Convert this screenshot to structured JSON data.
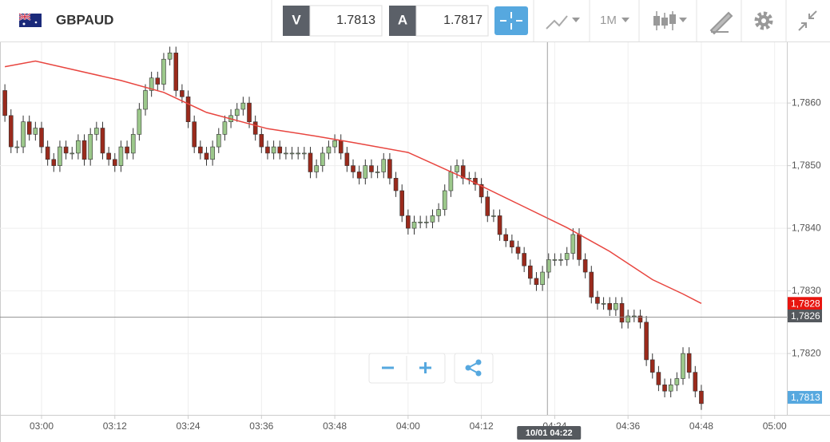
{
  "toolbar": {
    "symbol": "GBPAUD",
    "bid_label": "V",
    "bid": "1.7813",
    "ask_label": "A",
    "ask": "1.7817",
    "timeframe": "1M"
  },
  "chart_data": {
    "type": "candlestick",
    "x": [
      174,
      175,
      176,
      177,
      178,
      179,
      180,
      181,
      182,
      183,
      184,
      185,
      186,
      187,
      188,
      189,
      190,
      191,
      192,
      193,
      194,
      195,
      196,
      197,
      198,
      199,
      200,
      201,
      202,
      203,
      204,
      205,
      206,
      207,
      208,
      209,
      210,
      211,
      212,
      213,
      214,
      215,
      216,
      217,
      218,
      219,
      220,
      221,
      222,
      223,
      224,
      225,
      226,
      227,
      228,
      229,
      230,
      231,
      232,
      233,
      234,
      235,
      236,
      237,
      238,
      239,
      240,
      241,
      242,
      243,
      244,
      245,
      246,
      247,
      248,
      249,
      250,
      251,
      252,
      253,
      254,
      255,
      256,
      257,
      258,
      259,
      260,
      261,
      262,
      263,
      264,
      265,
      266,
      267,
      268,
      269,
      270,
      271,
      272,
      273,
      274,
      275,
      276,
      277,
      278,
      279,
      280,
      281,
      282,
      283,
      284,
      285,
      286,
      287,
      288
    ],
    "open": [
      1.7862,
      1.7858,
      1.7853,
      1.7853,
      1.7857,
      1.7855,
      1.7856,
      1.7853,
      1.7851,
      1.785,
      1.7853,
      1.7852,
      1.7852,
      1.7854,
      1.7851,
      1.7855,
      1.7856,
      1.7852,
      1.7851,
      1.785,
      1.7853,
      1.7852,
      1.7855,
      1.7859,
      1.7862,
      1.7864,
      1.7863,
      1.7867,
      1.7868,
      1.7862,
      1.7861,
      1.7857,
      1.7853,
      1.7852,
      1.7851,
      1.7853,
      1.7855,
      1.7857,
      1.7858,
      1.7859,
      1.786,
      1.7857,
      1.7855,
      1.7853,
      1.7852,
      1.7853,
      1.7852,
      1.7852,
      1.7852,
      1.7852,
      1.7852,
      1.7849,
      1.785,
      1.7852,
      1.7853,
      1.7854,
      1.7852,
      1.785,
      1.7849,
      1.7848,
      1.785,
      1.7849,
      1.7849,
      1.7851,
      1.7848,
      1.7846,
      1.7842,
      1.784,
      1.7841,
      1.7841,
      1.7841,
      1.7842,
      1.7843,
      1.7846,
      1.7849,
      1.785,
      1.7848,
      1.7848,
      1.7847,
      1.7845,
      1.7842,
      1.7842,
      1.7839,
      1.7838,
      1.7837,
      1.7836,
      1.7834,
      1.7832,
      1.7831,
      1.7833,
      1.7835,
      1.7835,
      1.7835,
      1.7836,
      1.7839,
      1.7835,
      1.7833,
      1.7829,
      1.7828,
      1.7828,
      1.7827,
      1.7828,
      1.7825,
      1.7826,
      1.7826,
      1.7825,
      1.7819,
      1.7817,
      1.7815,
      1.7814,
      1.7815,
      1.7816,
      1.782,
      1.7817,
      1.7814
    ],
    "high": [
      1.7863,
      1.7859,
      1.7854,
      1.7858,
      1.7858,
      1.7857,
      1.7857,
      1.7854,
      1.7852,
      1.7854,
      1.7854,
      1.7853,
      1.7855,
      1.7855,
      1.7856,
      1.7857,
      1.7857,
      1.7853,
      1.7852,
      1.7854,
      1.7854,
      1.7856,
      1.786,
      1.7863,
      1.7865,
      1.7865,
      1.7868,
      1.7869,
      1.7869,
      1.7863,
      1.7862,
      1.7858,
      1.7854,
      1.7853,
      1.7854,
      1.7856,
      1.7858,
      1.7859,
      1.786,
      1.7861,
      1.7861,
      1.7858,
      1.7856,
      1.7854,
      1.7854,
      1.7854,
      1.7853,
      1.7853,
      1.7853,
      1.7853,
      1.7853,
      1.7851,
      1.7853,
      1.7854,
      1.7855,
      1.7855,
      1.7853,
      1.7851,
      1.785,
      1.7851,
      1.7851,
      1.785,
      1.7852,
      1.7852,
      1.7849,
      1.7847,
      1.7843,
      1.7842,
      1.7842,
      1.7842,
      1.7843,
      1.7844,
      1.7847,
      1.785,
      1.7851,
      1.7851,
      1.7849,
      1.7849,
      1.7848,
      1.7846,
      1.7843,
      1.7843,
      1.784,
      1.7839,
      1.7838,
      1.7837,
      1.7835,
      1.7833,
      1.7834,
      1.7836,
      1.7836,
      1.7836,
      1.7837,
      1.784,
      1.784,
      1.7836,
      1.7834,
      1.783,
      1.7829,
      1.7829,
      1.7829,
      1.7829,
      1.7827,
      1.7827,
      1.7827,
      1.7826,
      1.782,
      1.7818,
      1.7816,
      1.7816,
      1.7817,
      1.7821,
      1.7821,
      1.7818,
      1.7815
    ],
    "low": [
      1.7857,
      1.7852,
      1.7852,
      1.7852,
      1.7854,
      1.7854,
      1.7852,
      1.785,
      1.7849,
      1.7849,
      1.7851,
      1.7851,
      1.7851,
      1.785,
      1.785,
      1.7854,
      1.7851,
      1.785,
      1.7849,
      1.7849,
      1.7851,
      1.7851,
      1.7854,
      1.7858,
      1.7861,
      1.7862,
      1.7862,
      1.7866,
      1.7861,
      1.786,
      1.7856,
      1.7852,
      1.7851,
      1.785,
      1.785,
      1.7852,
      1.7854,
      1.7856,
      1.7857,
      1.7858,
      1.7856,
      1.7854,
      1.7852,
      1.7851,
      1.7851,
      1.7851,
      1.7851,
      1.7851,
      1.7851,
      1.7851,
      1.7848,
      1.7848,
      1.7849,
      1.7851,
      1.7852,
      1.7851,
      1.7849,
      1.7848,
      1.7847,
      1.7847,
      1.7848,
      1.7848,
      1.7848,
      1.7847,
      1.7845,
      1.7841,
      1.7839,
      1.7839,
      1.784,
      1.784,
      1.784,
      1.7841,
      1.7842,
      1.7845,
      1.7848,
      1.7847,
      1.7847,
      1.7846,
      1.7844,
      1.7841,
      1.7841,
      1.7838,
      1.7837,
      1.7836,
      1.7835,
      1.7833,
      1.7831,
      1.783,
      1.783,
      1.7832,
      1.7834,
      1.7834,
      1.7834,
      1.7835,
      1.7834,
      1.7832,
      1.7828,
      1.7827,
      1.7827,
      1.7826,
      1.7826,
      1.7824,
      1.7824,
      1.7825,
      1.7824,
      1.7818,
      1.7816,
      1.7814,
      1.7813,
      1.7813,
      1.7814,
      1.7815,
      1.7816,
      1.7813,
      1.7811
    ],
    "close": [
      1.7858,
      1.7853,
      1.7853,
      1.7857,
      1.7855,
      1.7856,
      1.7853,
      1.7851,
      1.785,
      1.7853,
      1.7852,
      1.7852,
      1.7854,
      1.7851,
      1.7855,
      1.7856,
      1.7852,
      1.7851,
      1.785,
      1.7853,
      1.7852,
      1.7855,
      1.7859,
      1.7862,
      1.7864,
      1.7863,
      1.7867,
      1.7868,
      1.7862,
      1.7861,
      1.7857,
      1.7853,
      1.7852,
      1.7851,
      1.7853,
      1.7855,
      1.7857,
      1.7858,
      1.7859,
      1.786,
      1.7857,
      1.7855,
      1.7853,
      1.7852,
      1.7853,
      1.7852,
      1.7852,
      1.7852,
      1.7852,
      1.7852,
      1.7849,
      1.785,
      1.7852,
      1.7853,
      1.7854,
      1.7852,
      1.785,
      1.7849,
      1.7848,
      1.785,
      1.7849,
      1.7849,
      1.7851,
      1.7848,
      1.7846,
      1.7842,
      1.784,
      1.7841,
      1.7841,
      1.7841,
      1.7842,
      1.7843,
      1.7846,
      1.7849,
      1.785,
      1.7848,
      1.7848,
      1.7847,
      1.7845,
      1.7842,
      1.7842,
      1.7839,
      1.7838,
      1.7837,
      1.7836,
      1.7834,
      1.7832,
      1.7831,
      1.7833,
      1.7835,
      1.7835,
      1.7835,
      1.7836,
      1.7839,
      1.7835,
      1.7833,
      1.7829,
      1.7828,
      1.7828,
      1.7827,
      1.7828,
      1.7825,
      1.7826,
      1.7826,
      1.7825,
      1.7819,
      1.7817,
      1.7815,
      1.7814,
      1.7815,
      1.7816,
      1.782,
      1.7817,
      1.7814,
      1.7812
    ],
    "up_color": "#9cc88b",
    "down_color": "#9a2a1c",
    "moving_average": {
      "color": "#e8453f",
      "x": [
        174,
        179,
        193,
        200,
        207,
        217,
        225,
        231,
        240,
        250,
        258,
        266,
        273,
        280,
        285,
        288
      ],
      "values": [
        1.78658,
        1.78667,
        1.78636,
        1.78617,
        1.78585,
        1.78559,
        1.78547,
        1.78537,
        1.78521,
        1.78477,
        1.78439,
        1.78401,
        1.78363,
        1.78318,
        1.78295,
        1.7828
      ]
    },
    "xlim": [
      173.2,
      302
    ],
    "ylim": [
      1.78102,
      1.78697
    ],
    "xticks": [
      {
        "value": 180,
        "label": "03:00"
      },
      {
        "value": 192,
        "label": "03:12"
      },
      {
        "value": 204,
        "label": "03:24"
      },
      {
        "value": 216,
        "label": "03:36"
      },
      {
        "value": 228,
        "label": "03:48"
      },
      {
        "value": 240,
        "label": "04:00"
      },
      {
        "value": 252,
        "label": "04:12"
      },
      {
        "value": 264,
        "label": "04:24"
      },
      {
        "value": 276,
        "label": "04:36"
      },
      {
        "value": 288,
        "label": "04:48"
      },
      {
        "value": 300,
        "label": "05:00"
      }
    ],
    "yticks": [
      {
        "value": 1.782,
        "label": "1,7820"
      },
      {
        "value": 1.783,
        "label": "1,7830"
      },
      {
        "value": 1.784,
        "label": "1,7840"
      },
      {
        "value": 1.785,
        "label": "1,7850"
      },
      {
        "value": 1.786,
        "label": "1,7860"
      }
    ],
    "grid": true,
    "price_labels": [
      {
        "value": 1.7828,
        "label": "1,7828",
        "color": "#e8150f"
      },
      {
        "value": 1.7826,
        "label": "1,7826",
        "color": "#55595e"
      },
      {
        "value": 1.7813,
        "label": "1,7813",
        "color": "#56a8df"
      }
    ],
    "crosshair": {
      "x": 262.8,
      "y": 1.78258,
      "label": "10/01 04:22"
    }
  }
}
